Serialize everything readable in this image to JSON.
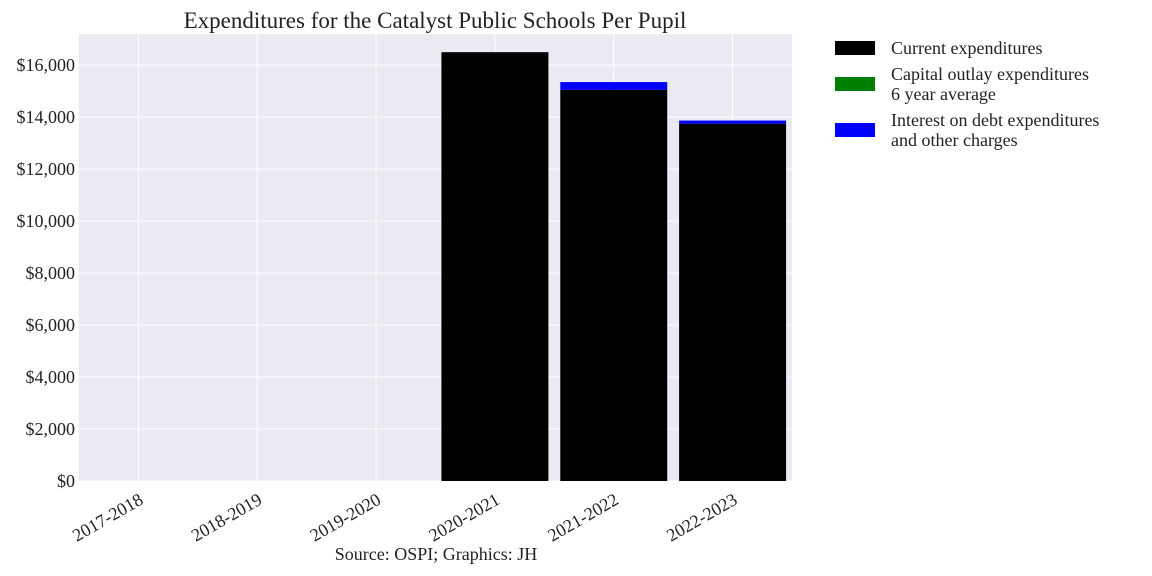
{
  "chart_data": {
    "type": "bar",
    "stacked": true,
    "title": "Expenditures for the Catalyst Public Schools Per Pupil",
    "categories": [
      "2017-2018",
      "2018-2019",
      "2019-2020",
      "2020-2021",
      "2021-2022",
      "2022-2023"
    ],
    "series": [
      {
        "name": "Current expenditures",
        "color": "#000000",
        "values": [
          0,
          0,
          0,
          16500,
          15050,
          13750
        ]
      },
      {
        "name": "Capital outlay expenditures\n6 year average",
        "color": "#008000",
        "values": [
          0,
          0,
          0,
          0,
          0,
          0
        ]
      },
      {
        "name": "Interest on debt expenditures\nand other charges",
        "color": "#0000ff",
        "values": [
          0,
          0,
          0,
          0,
          300,
          120
        ]
      }
    ],
    "ylim": [
      0,
      17200
    ],
    "yticks": [
      0,
      2000,
      4000,
      6000,
      8000,
      10000,
      12000,
      14000,
      16000
    ],
    "ytick_labels": [
      "$0",
      "$2,000",
      "$4,000",
      "$6,000",
      "$8,000",
      "$10,000",
      "$12,000",
      "$14,000",
      "$16,000"
    ],
    "xlabel": "",
    "ylabel": "",
    "grid": true,
    "legend_position": "outside-right-top"
  },
  "source_note": "Source: OSPI; Graphics: JH",
  "colors": {
    "plot_background": "#eaeaf2",
    "grid": "#ffffff"
  }
}
